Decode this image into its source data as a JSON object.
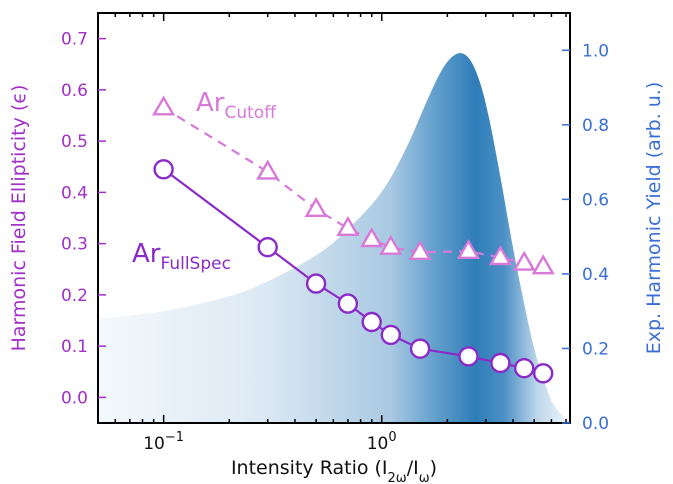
{
  "chart_data": {
    "type": "line",
    "xlabel_main": "Intensity Ratio (I",
    "xlabel_sub1": "2ω",
    "xlabel_mid": "/I",
    "xlabel_sub2": "ω",
    "xlabel_end": ")",
    "ylabel_left": "Harmonic Field Ellipticity (ϵ)",
    "ylabel_right": "Exp. Harmonic Yield (arb. u.)",
    "xscale": "log",
    "xlim": [
      0.05,
      7.3
    ],
    "ylim_left": [
      -0.05,
      0.75
    ],
    "ylim_right": [
      0.0,
      1.1
    ],
    "x_ticks": [
      {
        "value": 0.1,
        "base": "10",
        "exp": "−1"
      },
      {
        "value": 1.0,
        "base": "10",
        "exp": "0"
      }
    ],
    "y_left_ticks": [
      "0.0",
      "0.1",
      "0.2",
      "0.3",
      "0.4",
      "0.5",
      "0.6",
      "0.7"
    ],
    "y_right_ticks": [
      "0.0",
      "0.2",
      "0.4",
      "0.6",
      "0.8",
      "1.0"
    ],
    "colors": {
      "left_axis": "#a030c8",
      "right_axis": "#3a6fd8",
      "fullspec": "#8a2bc8",
      "cutoff": "#d878d8",
      "yield_dark": "#2b7bb9",
      "yield_light": "#e8f1f9"
    },
    "series": [
      {
        "name_main": "Ar",
        "name_sub": "FullSpec",
        "marker": "circle",
        "linestyle": "solid",
        "x": [
          0.1,
          0.3,
          0.5,
          0.7,
          0.9,
          1.1,
          1.5,
          2.5,
          3.5,
          4.5,
          5.5
        ],
        "y": [
          0.445,
          0.293,
          0.222,
          0.183,
          0.147,
          0.122,
          0.095,
          0.08,
          0.067,
          0.057,
          0.047
        ]
      },
      {
        "name_main": "Ar",
        "name_sub": "Cutoff",
        "marker": "triangle",
        "linestyle": "dashed",
        "x": [
          0.1,
          0.3,
          0.5,
          0.7,
          0.9,
          1.1,
          1.5,
          2.5,
          3.5,
          4.5,
          5.5
        ],
        "y": [
          0.565,
          0.44,
          0.367,
          0.33,
          0.308,
          0.293,
          0.283,
          0.285,
          0.273,
          0.262,
          0.255
        ]
      }
    ],
    "yield_curve": {
      "axis": "right",
      "x": [
        0.05,
        0.1,
        0.2,
        0.3,
        0.5,
        0.7,
        1.0,
        1.3,
        1.6,
        1.9,
        2.2,
        2.5,
        2.8,
        3.1,
        3.5,
        4.0,
        4.5,
        5.0,
        5.5,
        6.0,
        6.5,
        7.3
      ],
      "y": [
        0.28,
        0.3,
        0.34,
        0.38,
        0.45,
        0.52,
        0.62,
        0.74,
        0.86,
        0.95,
        0.99,
        0.98,
        0.92,
        0.82,
        0.66,
        0.47,
        0.32,
        0.2,
        0.12,
        0.06,
        0.03,
        0.0
      ]
    }
  }
}
